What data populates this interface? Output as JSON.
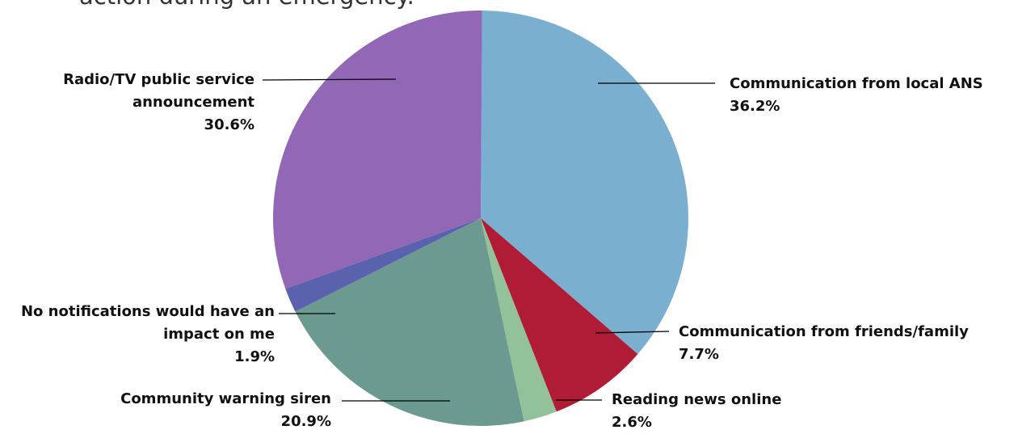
{
  "chart_data": {
    "type": "pie",
    "title": "action during an emergency.",
    "categories": [
      "Communication from local ANS",
      "Communication from friends/family",
      "Reading news online",
      "Community warning siren",
      "No notifications would have an impact on me",
      "Radio/TV public service announcement"
    ],
    "values": [
      36.2,
      7.7,
      2.6,
      20.9,
      1.9,
      30.6
    ],
    "value_labels": [
      "36.2%",
      "7.7%",
      "2.6%",
      "20.9%",
      "1.9%",
      "30.6%"
    ],
    "colors": [
      "#7bafd0",
      "#b01c35",
      "#93c19a",
      "#6c9a91",
      "#5a62ae",
      "#9267b5"
    ]
  }
}
